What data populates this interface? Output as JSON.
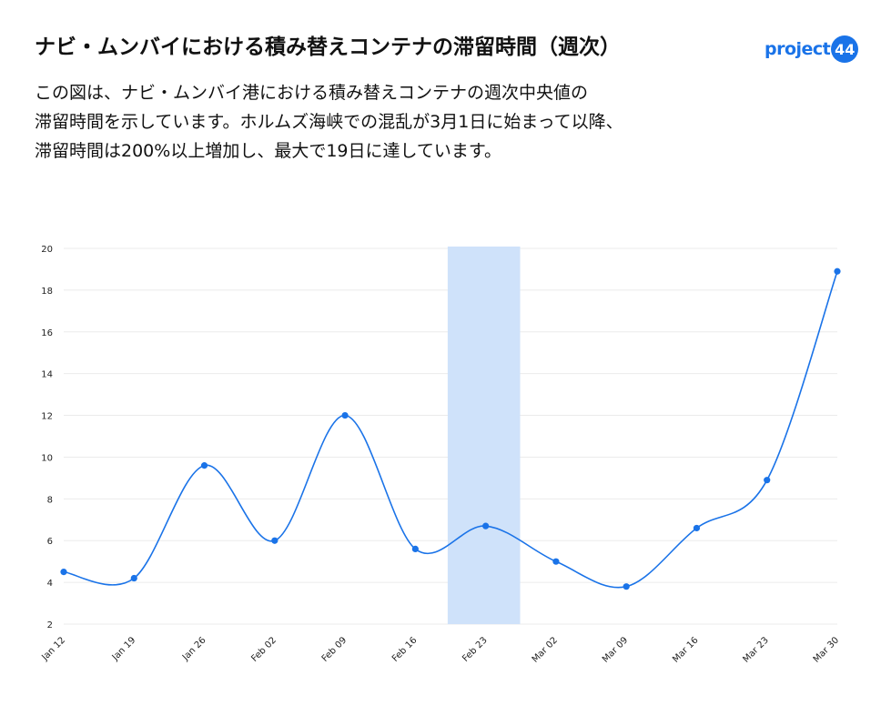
{
  "title": "ナビ・ムンバイにおける積み替えコンテナの滞留時間（週次）",
  "subtitle_lines": [
    "この図は、ナビ・ムンバイ港における積み替えコンテナの週次中央値の",
    "滞留時間を示しています。ホルムズ海峡での混乱が3月1日に始まって以降、",
    "滞留時間は200%以上増加し、最大で19日に達しています。"
  ],
  "logo": {
    "text": "project",
    "badge": "44"
  },
  "colors": {
    "line": "#1a73e8",
    "highlight": "#cfe2fa",
    "grid": "#ebebeb"
  },
  "chart_data": {
    "type": "line",
    "x": [
      "Jan 12",
      "Jan 19",
      "Jan 26",
      "Feb 02",
      "Feb 09",
      "Feb 16",
      "Feb 23",
      "Mar 02",
      "Mar 09",
      "Mar 16",
      "Mar 23",
      "Mar 30"
    ],
    "series": [
      {
        "values": [
          4.5,
          4.2,
          9.6,
          6.0,
          12.0,
          5.6,
          6.7,
          5.0,
          3.8,
          6.6,
          8.9,
          18.9
        ]
      }
    ],
    "ylim": [
      2,
      20
    ],
    "yticks": [
      2,
      4,
      6,
      8,
      10,
      12,
      14,
      16,
      18,
      20
    ],
    "highlight_range": [
      "Feb 20",
      "Feb 27"
    ],
    "grid": "horizontal",
    "xlabel": "",
    "ylabel": ""
  }
}
